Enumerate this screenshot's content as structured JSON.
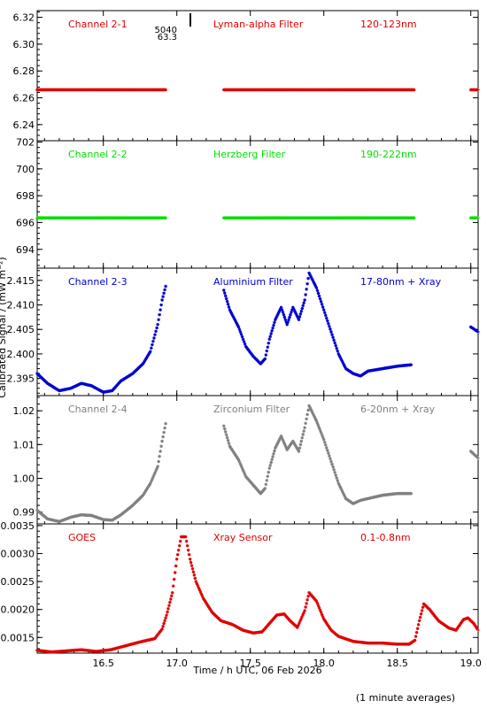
{
  "chart_data": {
    "type": "scatter",
    "xlabel": "Time / h UTC, 06 Feb 2026",
    "ylabel": "Calibrated Signal / (mW m⁻²)",
    "footnote": "(1 minute averages)",
    "xlim": [
      16.05,
      19.05
    ],
    "xticks": [
      "16.5",
      "17.0",
      "17.5",
      "18.0",
      "18.5",
      "19.0"
    ],
    "annotation": {
      "x": 17.05,
      "lines": [
        "5040",
        "63.3"
      ]
    },
    "panels": [
      {
        "channel": "Channel 2-1",
        "filter": "Lyman-alpha Filter",
        "band": "120-123nm",
        "color": "#e00000",
        "ylim": [
          6.228,
          6.325
        ],
        "yticks": [
          "6.24",
          "6.26",
          "6.28",
          "6.30",
          "6.32"
        ],
        "gaps": [
          [
            16.93,
            17.32
          ],
          [
            18.62,
            19.0
          ]
        ],
        "points": [
          [
            16.05,
            6.266
          ],
          [
            16.93,
            6.266
          ],
          [
            17.32,
            6.266
          ],
          [
            18.62,
            6.266
          ],
          [
            19.0,
            6.266
          ],
          [
            19.05,
            6.266
          ]
        ]
      },
      {
        "channel": "Channel 2-2",
        "filter": "Herzberg Filter",
        "band": "190-222nm",
        "color": "#00e000",
        "ylim": [
          692.6,
          702.1
        ],
        "yticks": [
          "694",
          "696",
          "698",
          "700",
          "702"
        ],
        "gaps": [
          [
            16.93,
            17.32
          ],
          [
            18.62,
            19.0
          ]
        ],
        "points": [
          [
            16.05,
            696.35
          ],
          [
            16.93,
            696.35
          ],
          [
            17.32,
            696.35
          ],
          [
            18.62,
            696.35
          ],
          [
            19.0,
            696.35
          ],
          [
            19.05,
            696.35
          ]
        ]
      },
      {
        "channel": "Channel 2-3",
        "filter": "Aluminium Filter",
        "band": "17-80nm + Xray",
        "color": "#0000d0",
        "ylim": [
          2.3915,
          2.4175
        ],
        "yticks": [
          "2.395",
          "2.400",
          "2.405",
          "2.410",
          "2.415"
        ],
        "gaps": [
          [
            16.93,
            17.32
          ],
          [
            18.62,
            19.0
          ]
        ],
        "points": [
          [
            16.05,
            2.396
          ],
          [
            16.12,
            2.394
          ],
          [
            16.2,
            2.3925
          ],
          [
            16.28,
            2.393
          ],
          [
            16.35,
            2.394
          ],
          [
            16.42,
            2.3935
          ],
          [
            16.5,
            2.3922
          ],
          [
            16.56,
            2.3925
          ],
          [
            16.62,
            2.3945
          ],
          [
            16.7,
            2.396
          ],
          [
            16.77,
            2.398
          ],
          [
            16.82,
            2.4005
          ],
          [
            16.87,
            2.406
          ],
          [
            16.9,
            2.411
          ],
          [
            16.93,
            2.4145
          ],
          [
            17.32,
            2.413
          ],
          [
            17.36,
            2.409
          ],
          [
            17.42,
            2.4055
          ],
          [
            17.47,
            2.4015
          ],
          [
            17.52,
            2.3995
          ],
          [
            17.57,
            2.398
          ],
          [
            17.6,
            2.399
          ],
          [
            17.63,
            2.403
          ],
          [
            17.67,
            2.407
          ],
          [
            17.71,
            2.4095
          ],
          [
            17.75,
            2.406
          ],
          [
            17.79,
            2.4095
          ],
          [
            17.83,
            2.407
          ],
          [
            17.87,
            2.411
          ],
          [
            17.9,
            2.4165
          ],
          [
            17.95,
            2.4135
          ],
          [
            18.0,
            2.409
          ],
          [
            18.05,
            2.4045
          ],
          [
            18.1,
            2.4
          ],
          [
            18.15,
            2.397
          ],
          [
            18.2,
            2.396
          ],
          [
            18.25,
            2.3955
          ],
          [
            18.3,
            2.3965
          ],
          [
            18.4,
            2.397
          ],
          [
            18.5,
            2.3975
          ],
          [
            18.6,
            2.3978
          ],
          [
            19.0,
            2.4055
          ],
          [
            19.05,
            2.4045
          ]
        ]
      },
      {
        "channel": "Channel 2-4",
        "filter": "Zirconium Filter",
        "band": "6-20nm + Xray",
        "color": "#808080",
        "ylim": [
          0.9865,
          1.0245
        ],
        "yticks": [
          "0.99",
          "1.00",
          "1.01",
          "1.02"
        ],
        "gaps": [
          [
            16.93,
            17.32
          ],
          [
            18.62,
            19.0
          ]
        ],
        "points": [
          [
            16.05,
            0.9905
          ],
          [
            16.12,
            0.988
          ],
          [
            16.2,
            0.9872
          ],
          [
            16.28,
            0.9885
          ],
          [
            16.35,
            0.9892
          ],
          [
            16.42,
            0.989
          ],
          [
            16.5,
            0.9878
          ],
          [
            16.56,
            0.9876
          ],
          [
            16.62,
            0.9892
          ],
          [
            16.7,
            0.992
          ],
          [
            16.77,
            0.995
          ],
          [
            16.82,
            0.9985
          ],
          [
            16.87,
            1.0035
          ],
          [
            16.9,
            1.011
          ],
          [
            16.93,
            1.0175
          ],
          [
            17.32,
            1.0155
          ],
          [
            17.36,
            1.0095
          ],
          [
            17.42,
            1.0055
          ],
          [
            17.47,
            1.0005
          ],
          [
            17.52,
            0.998
          ],
          [
            17.57,
            0.9955
          ],
          [
            17.6,
            0.997
          ],
          [
            17.63,
            1.003
          ],
          [
            17.67,
            1.009
          ],
          [
            17.71,
            1.0125
          ],
          [
            17.75,
            1.0085
          ],
          [
            17.79,
            1.011
          ],
          [
            17.83,
            1.008
          ],
          [
            17.87,
            1.015
          ],
          [
            17.9,
            1.0215
          ],
          [
            17.95,
            1.017
          ],
          [
            18.0,
            1.0115
          ],
          [
            18.05,
            1.005
          ],
          [
            18.1,
            0.9985
          ],
          [
            18.15,
            0.994
          ],
          [
            18.2,
            0.9925
          ],
          [
            18.25,
            0.9935
          ],
          [
            18.3,
            0.994
          ],
          [
            18.4,
            0.995
          ],
          [
            18.5,
            0.9955
          ],
          [
            18.6,
            0.9955
          ],
          [
            19.0,
            1.008
          ],
          [
            19.05,
            1.006
          ]
        ]
      },
      {
        "channel": "GOES",
        "filter": "Xray Sensor",
        "band": "0.1-0.8nm",
        "color": "#e00000",
        "ylim": [
          0.00122,
          0.00353
        ],
        "yticks": [
          "0.0015",
          "0.0020",
          "0.0025",
          "0.0030",
          "0.0035"
        ],
        "gaps": [],
        "points": [
          [
            16.05,
            0.00127
          ],
          [
            16.15,
            0.00124
          ],
          [
            16.25,
            0.00126
          ],
          [
            16.35,
            0.00128
          ],
          [
            16.45,
            0.00125
          ],
          [
            16.55,
            0.00128
          ],
          [
            16.65,
            0.00135
          ],
          [
            16.75,
            0.00142
          ],
          [
            16.85,
            0.00148
          ],
          [
            16.9,
            0.00165
          ],
          [
            16.93,
            0.0019
          ],
          [
            16.97,
            0.0023
          ],
          [
            17.0,
            0.0029
          ],
          [
            17.03,
            0.0033
          ],
          [
            17.06,
            0.0033
          ],
          [
            17.09,
            0.0029
          ],
          [
            17.13,
            0.0025
          ],
          [
            17.18,
            0.0022
          ],
          [
            17.24,
            0.00195
          ],
          [
            17.3,
            0.0018
          ],
          [
            17.38,
            0.00173
          ],
          [
            17.45,
            0.00163
          ],
          [
            17.52,
            0.00158
          ],
          [
            17.58,
            0.0016
          ],
          [
            17.63,
            0.00175
          ],
          [
            17.68,
            0.0019
          ],
          [
            17.73,
            0.00192
          ],
          [
            17.77,
            0.0018
          ],
          [
            17.82,
            0.00168
          ],
          [
            17.87,
            0.00198
          ],
          [
            17.9,
            0.0023
          ],
          [
            17.95,
            0.00215
          ],
          [
            18.0,
            0.00183
          ],
          [
            18.05,
            0.00163
          ],
          [
            18.1,
            0.00152
          ],
          [
            18.2,
            0.00143
          ],
          [
            18.3,
            0.0014
          ],
          [
            18.4,
            0.0014
          ],
          [
            18.5,
            0.00138
          ],
          [
            18.58,
            0.00138
          ],
          [
            18.62,
            0.00145
          ],
          [
            18.65,
            0.0018
          ],
          [
            18.68,
            0.0021
          ],
          [
            18.72,
            0.002
          ],
          [
            18.78,
            0.0018
          ],
          [
            18.85,
            0.00167
          ],
          [
            18.9,
            0.00163
          ],
          [
            18.95,
            0.00182
          ],
          [
            18.98,
            0.00185
          ],
          [
            19.02,
            0.00175
          ],
          [
            19.05,
            0.00163
          ]
        ]
      }
    ]
  }
}
